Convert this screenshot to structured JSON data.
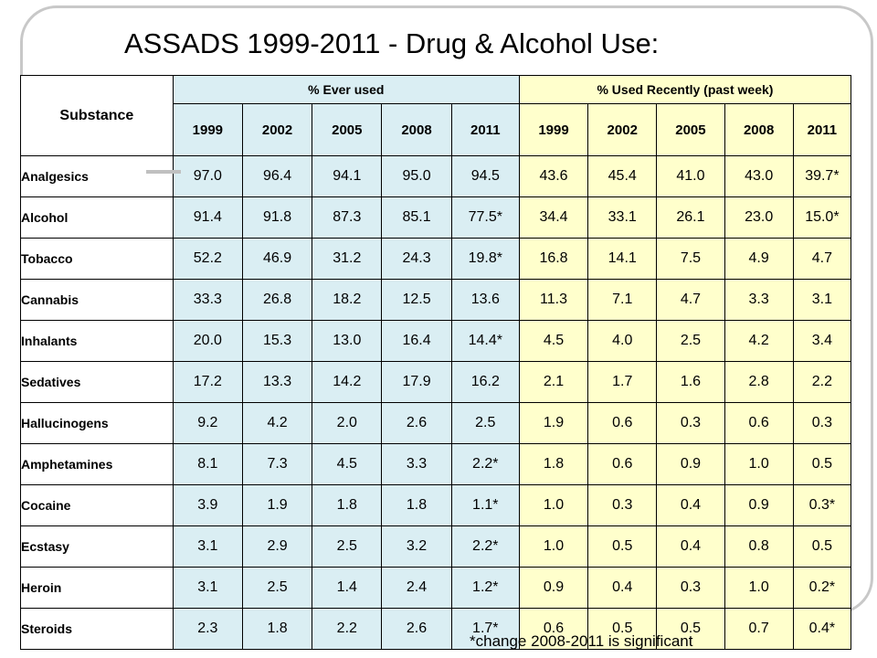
{
  "title": "ASSADS 1999-2011 - Drug & Alcohol Use:",
  "table": {
    "substance_header": "Substance",
    "ever_used_header": "% Ever used",
    "recent_header": "% Used Recently (past week)",
    "years": [
      "1999",
      "2002",
      "2005",
      "2008",
      "2011"
    ],
    "rows": [
      {
        "substance": "Analgesics",
        "ever": [
          "97.0",
          "96.4",
          "94.1",
          "95.0",
          "94.5"
        ],
        "recent": [
          "43.6",
          "45.4",
          "41.0",
          "43.0",
          "39.7*"
        ]
      },
      {
        "substance": "Alcohol",
        "ever": [
          "91.4",
          "91.8",
          "87.3",
          "85.1",
          "77.5*"
        ],
        "recent": [
          "34.4",
          "33.1",
          "26.1",
          "23.0",
          "15.0*"
        ]
      },
      {
        "substance": "Tobacco",
        "ever": [
          "52.2",
          "46.9",
          "31.2",
          "24.3",
          "19.8*"
        ],
        "recent": [
          "16.8",
          "14.1",
          "7.5",
          "4.9",
          "4.7"
        ]
      },
      {
        "substance": "Cannabis",
        "ever": [
          "33.3",
          "26.8",
          "18.2",
          "12.5",
          "13.6"
        ],
        "recent": [
          "11.3",
          "7.1",
          "4.7",
          "3.3",
          "3.1"
        ]
      },
      {
        "substance": "Inhalants",
        "ever": [
          "20.0",
          "15.3",
          "13.0",
          "16.4",
          "14.4*"
        ],
        "recent": [
          "4.5",
          "4.0",
          "2.5",
          "4.2",
          "3.4"
        ]
      },
      {
        "substance": "Sedatives",
        "ever": [
          "17.2",
          "13.3",
          "14.2",
          "17.9",
          "16.2"
        ],
        "recent": [
          "2.1",
          "1.7",
          "1.6",
          "2.8",
          "2.2"
        ]
      },
      {
        "substance": "Hallucinogens",
        "ever": [
          "9.2",
          "4.2",
          "2.0",
          "2.6",
          "2.5"
        ],
        "recent": [
          "1.9",
          "0.6",
          "0.3",
          "0.6",
          "0.3"
        ]
      },
      {
        "substance": "Amphetamines",
        "ever": [
          "8.1",
          "7.3",
          "4.5",
          "3.3",
          "2.2*"
        ],
        "recent": [
          "1.8",
          "0.6",
          "0.9",
          "1.0",
          "0.5"
        ]
      },
      {
        "substance": "Cocaine",
        "ever": [
          "3.9",
          "1.9",
          "1.8",
          "1.8",
          "1.1*"
        ],
        "recent": [
          "1.0",
          "0.3",
          "0.4",
          "0.9",
          "0.3*"
        ]
      },
      {
        "substance": "Ecstasy",
        "ever": [
          "3.1",
          "2.9",
          "2.5",
          "3.2",
          "2.2*"
        ],
        "recent": [
          "1.0",
          "0.5",
          "0.4",
          "0.8",
          "0.5"
        ]
      },
      {
        "substance": "Heroin",
        "ever": [
          "3.1",
          "2.5",
          "1.4",
          "2.4",
          "1.2*"
        ],
        "recent": [
          "0.9",
          "0.4",
          "0.3",
          "1.0",
          "0.2*"
        ]
      },
      {
        "substance": "Steroids",
        "ever": [
          "2.3",
          "1.8",
          "2.2",
          "2.6",
          "1.7*"
        ],
        "recent": [
          "0.6",
          "0.5",
          "0.5",
          "0.7",
          "0.4*"
        ]
      }
    ]
  },
  "footnote": "*change 2008-2011 is significant",
  "colors": {
    "ever_used_bg": "#daeef3",
    "recent_bg": "#ffffcc",
    "frame": "#c8c8c8"
  }
}
